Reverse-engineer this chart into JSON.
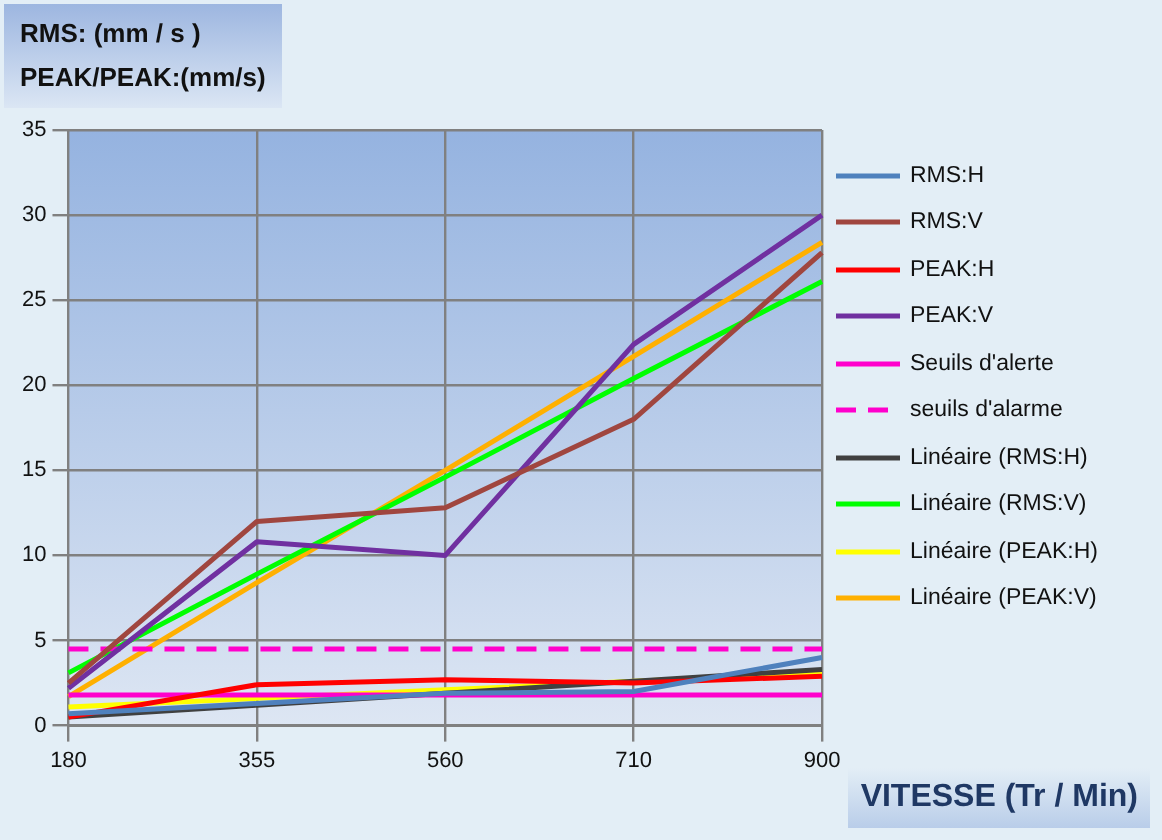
{
  "chart_data": {
    "type": "line",
    "ylabel": "RMS: (mm / s )\nPEAK/PEAK:(mm/s)",
    "xlabel": "VITESSE (Tr / Min)",
    "categories": [
      "180",
      "355",
      "560",
      "710",
      "900"
    ],
    "ylim": [
      0,
      35
    ],
    "yticks": [
      0,
      5,
      10,
      15,
      20,
      25,
      30,
      35
    ],
    "grid": true,
    "legend": "right",
    "marker": "none",
    "line_style": "solid",
    "series": [
      {
        "name": "RMS:H",
        "color": "#4f81bd",
        "values": [
          0.7,
          1.3,
          1.9,
          2.0,
          4.0
        ]
      },
      {
        "name": "RMS:V",
        "color": "#a0463f",
        "values": [
          2.5,
          12,
          12.8,
          18,
          27.8
        ]
      },
      {
        "name": "PEAK:H",
        "color": "#ff0000",
        "values": [
          0.5,
          2.4,
          2.7,
          2.5,
          2.9
        ]
      },
      {
        "name": "PEAK:V",
        "color": "#7030a0",
        "values": [
          2.2,
          10.8,
          10,
          22.4,
          30
        ]
      },
      {
        "name": "Seuils d'alerte",
        "color": "#ff00cc",
        "values": [
          1.8,
          1.8,
          1.8,
          1.8,
          1.8
        ]
      },
      {
        "name": "seuils d'alarme",
        "color": "#ff00cc",
        "line_style": "dashed",
        "values": [
          4.5,
          4.5,
          4.5,
          4.5,
          4.5
        ]
      },
      {
        "name": "Linéaire (RMS:H)",
        "color": "#404040",
        "values": [
          0.5,
          1.2,
          1.9,
          2.6,
          3.3
        ]
      },
      {
        "name": "Linéaire (RMS:V)",
        "color": "#00ff00",
        "values": [
          3.1,
          8.9,
          14.6,
          20.4,
          26.1
        ]
      },
      {
        "name": "Linéaire (PEAK:H)",
        "color": "#ffff00",
        "values": [
          1.1,
          1.6,
          2.1,
          2.6,
          3.1
        ]
      },
      {
        "name": "Linéaire (PEAK:V)",
        "color": "#ffb000",
        "values": [
          1.7,
          8.4,
          15.0,
          21.7,
          28.4
        ]
      }
    ]
  }
}
